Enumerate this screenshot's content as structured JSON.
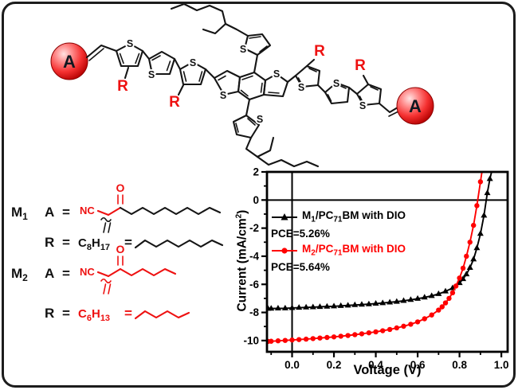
{
  "colors": {
    "structure_red": "#ee1111",
    "chart_red": "#ff0000",
    "ink": "#151515",
    "border": "#1c1c1c"
  },
  "molecule": {
    "acceptor": "A",
    "substituent": "R",
    "sulfur": "S"
  },
  "definitions": {
    "m1": {
      "label": "M",
      "sub": "1",
      "group": "A",
      "eq": "=",
      "nc": "NC",
      "o": "O"
    },
    "m1_r": {
      "group": "R",
      "eq": "=",
      "formula": {
        "el1": "C",
        "sub1": "8",
        "el2": "H",
        "sub2": "17"
      },
      "eq2": "="
    },
    "m2": {
      "label": "M",
      "sub": "2",
      "group": "A",
      "eq": "=",
      "nc": "NC",
      "o": "O"
    },
    "m2_r": {
      "group": "R",
      "eq": "=",
      "formula": {
        "el1": "C",
        "sub1": "6",
        "el2": "H",
        "sub2": "13"
      },
      "eq2": "="
    }
  },
  "chart_data": {
    "type": "line",
    "title": "",
    "xlabel": "Voltage (V)",
    "ylabel": "Current (mA/cm2)",
    "ylabel_parts": {
      "pre": "Current (mA/cm",
      "sup": "2",
      "post": ")"
    },
    "xlim": [
      -0.12,
      1.03
    ],
    "ylim": [
      -10.8,
      2
    ],
    "x_ticks": [
      0.0,
      0.2,
      0.4,
      0.6,
      0.8,
      1.0
    ],
    "x_tick_labels": [
      "0.0",
      "0.2",
      "0.4",
      "0.6",
      "0.8",
      "1.0"
    ],
    "x_minor_step": 0.1,
    "y_ticks": [
      2,
      0,
      -2,
      -4,
      -6,
      -8,
      -10
    ],
    "y_tick_labels": [
      "2",
      "0",
      "-2",
      "-4",
      "-6",
      "-8",
      "-10"
    ],
    "y_minor_step": 1,
    "grid": false,
    "axis_lines_at_zero": true,
    "legend_position": "upper-left-inside",
    "series": [
      {
        "name": "M1/PC71BM with DIO",
        "pce": "PCE=5.26%",
        "color": "#000000",
        "marker": "triangle",
        "points": [
          [
            -0.115,
            -7.73
          ],
          [
            -0.1,
            -7.72
          ],
          [
            -0.067,
            -7.71
          ],
          [
            -0.033,
            -7.7
          ],
          [
            0.0,
            -7.68
          ],
          [
            0.033,
            -7.66
          ],
          [
            0.067,
            -7.64
          ],
          [
            0.1,
            -7.62
          ],
          [
            0.133,
            -7.6
          ],
          [
            0.167,
            -7.58
          ],
          [
            0.2,
            -7.56
          ],
          [
            0.233,
            -7.53
          ],
          [
            0.267,
            -7.5
          ],
          [
            0.3,
            -7.47
          ],
          [
            0.333,
            -7.44
          ],
          [
            0.367,
            -7.41
          ],
          [
            0.4,
            -7.37
          ],
          [
            0.433,
            -7.33
          ],
          [
            0.467,
            -7.28
          ],
          [
            0.5,
            -7.23
          ],
          [
            0.533,
            -7.17
          ],
          [
            0.567,
            -7.1
          ],
          [
            0.6,
            -7.02
          ],
          [
            0.633,
            -6.93
          ],
          [
            0.667,
            -6.82
          ],
          [
            0.7,
            -6.68
          ],
          [
            0.733,
            -6.5
          ],
          [
            0.767,
            -6.26
          ],
          [
            0.8,
            -5.9
          ],
          [
            0.817,
            -5.62
          ],
          [
            0.833,
            -5.28
          ],
          [
            0.85,
            -4.82
          ],
          [
            0.867,
            -4.22
          ],
          [
            0.883,
            -3.42
          ],
          [
            0.9,
            -2.4
          ],
          [
            0.917,
            -1.1
          ],
          [
            0.933,
            0.5
          ],
          [
            0.945,
            1.5
          ],
          [
            0.955,
            2.1
          ]
        ]
      },
      {
        "name": "M2/PC71BM with DIO",
        "pce": "PCE=5.64%",
        "color": "#ff0000",
        "marker": "circle",
        "points": [
          [
            -0.115,
            -10.06
          ],
          [
            -0.1,
            -10.05
          ],
          [
            -0.067,
            -10.02
          ],
          [
            -0.033,
            -9.99
          ],
          [
            0.0,
            -9.96
          ],
          [
            0.033,
            -9.93
          ],
          [
            0.067,
            -9.9
          ],
          [
            0.1,
            -9.86
          ],
          [
            0.133,
            -9.82
          ],
          [
            0.167,
            -9.78
          ],
          [
            0.2,
            -9.74
          ],
          [
            0.233,
            -9.69
          ],
          [
            0.267,
            -9.64
          ],
          [
            0.3,
            -9.58
          ],
          [
            0.333,
            -9.52
          ],
          [
            0.367,
            -9.45
          ],
          [
            0.4,
            -9.38
          ],
          [
            0.433,
            -9.3
          ],
          [
            0.467,
            -9.21
          ],
          [
            0.5,
            -9.1
          ],
          [
            0.533,
            -8.98
          ],
          [
            0.567,
            -8.84
          ],
          [
            0.6,
            -8.67
          ],
          [
            0.633,
            -8.45
          ],
          [
            0.667,
            -8.18
          ],
          [
            0.7,
            -7.83
          ],
          [
            0.717,
            -7.6
          ],
          [
            0.733,
            -7.32
          ],
          [
            0.75,
            -7.0
          ],
          [
            0.767,
            -6.6
          ],
          [
            0.783,
            -6.12
          ],
          [
            0.8,
            -5.55
          ],
          [
            0.817,
            -4.85
          ],
          [
            0.833,
            -4.0
          ],
          [
            0.85,
            -3.0
          ],
          [
            0.867,
            -1.8
          ],
          [
            0.883,
            -0.4
          ],
          [
            0.9,
            1.3
          ],
          [
            0.908,
            2.1
          ]
        ]
      }
    ],
    "legend_entries": [
      {
        "pre": "M",
        "sub1": "1",
        "mid": "/PC",
        "sub2": "71",
        "post": "BM with DIO",
        "pce": "PCE=5.26%",
        "color": "#000000",
        "marker": "triangle"
      },
      {
        "pre": "M",
        "sub1": "2",
        "mid": "/PC",
        "sub2": "71",
        "post": "BM with DIO",
        "pce": "PCE=5.64%",
        "color": "#ff0000",
        "marker": "circle"
      }
    ]
  }
}
